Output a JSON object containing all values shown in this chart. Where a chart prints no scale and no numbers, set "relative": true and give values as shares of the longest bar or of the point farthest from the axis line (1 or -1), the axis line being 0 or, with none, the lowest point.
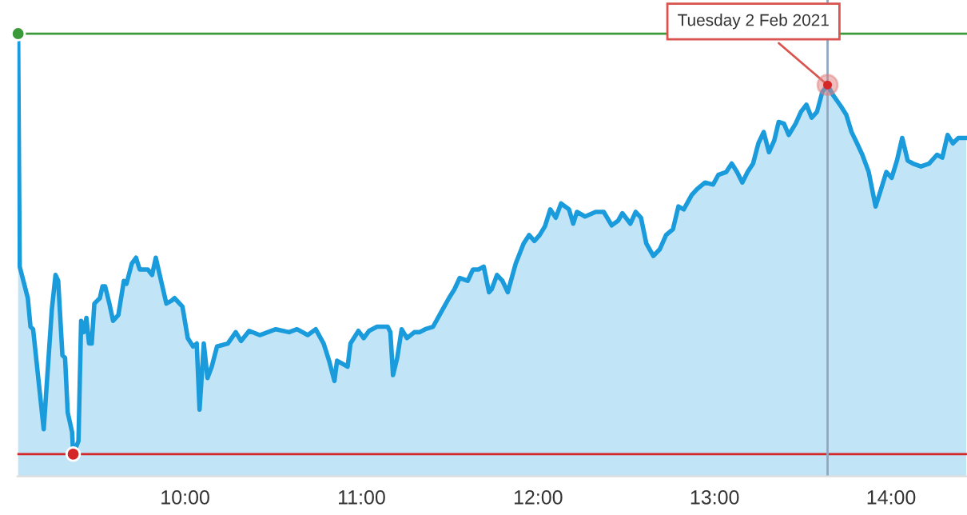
{
  "chart_data": {
    "type": "area",
    "relative": true,
    "x": [
      9.054,
      9.063,
      9.109,
      9.124,
      9.139,
      9.199,
      9.245,
      9.266,
      9.281,
      9.305,
      9.32,
      9.335,
      9.36,
      9.366,
      9.396,
      9.411,
      9.426,
      9.441,
      9.456,
      9.471,
      9.486,
      9.517,
      9.532,
      9.547,
      9.571,
      9.592,
      9.622,
      9.653,
      9.668,
      9.698,
      9.722,
      9.743,
      9.789,
      9.813,
      9.834,
      9.864,
      9.894,
      9.924,
      9.94,
      9.985,
      10.015,
      10.045,
      10.066,
      10.082,
      10.106,
      10.127,
      10.151,
      10.181,
      10.242,
      10.287,
      10.317,
      10.363,
      10.423,
      10.514,
      10.589,
      10.634,
      10.695,
      10.74,
      10.785,
      10.816,
      10.846,
      10.861,
      10.921,
      10.937,
      10.982,
      11.012,
      11.042,
      11.088,
      11.148,
      11.163,
      11.178,
      11.202,
      11.227,
      11.257,
      11.299,
      11.329,
      11.36,
      11.405,
      11.45,
      11.495,
      11.526,
      11.556,
      11.601,
      11.631,
      11.662,
      11.692,
      11.722,
      11.737,
      11.767,
      11.798,
      11.828,
      11.873,
      11.918,
      11.949,
      11.979,
      12.009,
      12.039,
      12.069,
      12.1,
      12.13,
      12.175,
      12.199,
      12.22,
      12.266,
      12.326,
      12.372,
      12.417,
      12.453,
      12.477,
      12.523,
      12.553,
      12.583,
      12.613,
      12.653,
      12.689,
      12.725,
      12.764,
      12.795,
      12.825,
      12.87,
      12.9,
      12.946,
      12.991,
      13.021,
      13.066,
      13.097,
      13.127,
      13.157,
      13.187,
      13.218,
      13.248,
      13.278,
      13.308,
      13.338,
      13.363,
      13.393,
      13.42,
      13.459,
      13.489,
      13.52,
      13.55,
      13.58,
      13.61,
      13.64,
      13.671,
      13.716,
      13.746,
      13.776,
      13.807,
      13.837,
      13.873,
      13.912,
      13.943,
      13.973,
      14.003,
      14.033,
      14.063,
      14.094,
      14.124,
      14.169,
      14.215,
      14.26,
      14.29,
      14.32,
      14.35,
      14.381,
      14.426
    ],
    "series": [
      {
        "color": "#1a9bdc",
        "values": [
          1.0,
          0.446,
          0.371,
          0.303,
          0.297,
          0.059,
          0.344,
          0.426,
          0.412,
          0.235,
          0.229,
          0.099,
          0.052,
          0.0,
          0.031,
          0.317,
          0.29,
          0.324,
          0.263,
          0.263,
          0.358,
          0.371,
          0.399,
          0.399,
          0.358,
          0.317,
          0.331,
          0.412,
          0.405,
          0.453,
          0.467,
          0.439,
          0.439,
          0.426,
          0.467,
          0.412,
          0.358,
          0.365,
          0.371,
          0.351,
          0.276,
          0.256,
          0.263,
          0.106,
          0.263,
          0.181,
          0.208,
          0.256,
          0.263,
          0.29,
          0.269,
          0.293,
          0.283,
          0.297,
          0.29,
          0.297,
          0.283,
          0.297,
          0.263,
          0.222,
          0.174,
          0.222,
          0.208,
          0.263,
          0.293,
          0.276,
          0.293,
          0.303,
          0.303,
          0.29,
          0.188,
          0.229,
          0.297,
          0.276,
          0.29,
          0.29,
          0.297,
          0.303,
          0.337,
          0.371,
          0.392,
          0.419,
          0.412,
          0.439,
          0.439,
          0.446,
          0.385,
          0.392,
          0.426,
          0.412,
          0.385,
          0.453,
          0.501,
          0.521,
          0.507,
          0.521,
          0.542,
          0.582,
          0.562,
          0.596,
          0.582,
          0.548,
          0.576,
          0.565,
          0.576,
          0.576,
          0.544,
          0.555,
          0.573,
          0.548,
          0.576,
          0.562,
          0.501,
          0.471,
          0.487,
          0.521,
          0.535,
          0.589,
          0.582,
          0.616,
          0.63,
          0.646,
          0.641,
          0.664,
          0.671,
          0.691,
          0.671,
          0.646,
          0.671,
          0.691,
          0.739,
          0.766,
          0.718,
          0.746,
          0.79,
          0.786,
          0.759,
          0.786,
          0.814,
          0.831,
          0.8,
          0.814,
          0.861,
          0.878,
          0.854,
          0.827,
          0.807,
          0.766,
          0.739,
          0.712,
          0.671,
          0.589,
          0.63,
          0.671,
          0.657,
          0.698,
          0.752,
          0.698,
          0.691,
          0.684,
          0.691,
          0.712,
          0.705,
          0.759,
          0.739,
          0.752,
          0.752
        ]
      }
    ],
    "xlim": [
      9.05,
      14.43
    ],
    "xticks": [
      {
        "value": 10,
        "label": "10:00"
      },
      {
        "value": 11,
        "label": "11:00"
      },
      {
        "value": 12,
        "label": "12:00"
      },
      {
        "value": 13,
        "label": "13:00"
      },
      {
        "value": 14,
        "label": "14:00"
      }
    ],
    "ref_lines": [
      {
        "axis": "y",
        "value": 1,
        "color": "#3a9a3a"
      },
      {
        "axis": "y",
        "value": 0,
        "color": "#d62728"
      },
      {
        "axis": "x",
        "value": 13.64,
        "color": "#8fa8c0"
      }
    ],
    "annotations": [
      {
        "text": "Tuesday 2 Feb 2021",
        "x": 13.64,
        "y": 0.878
      }
    ]
  }
}
